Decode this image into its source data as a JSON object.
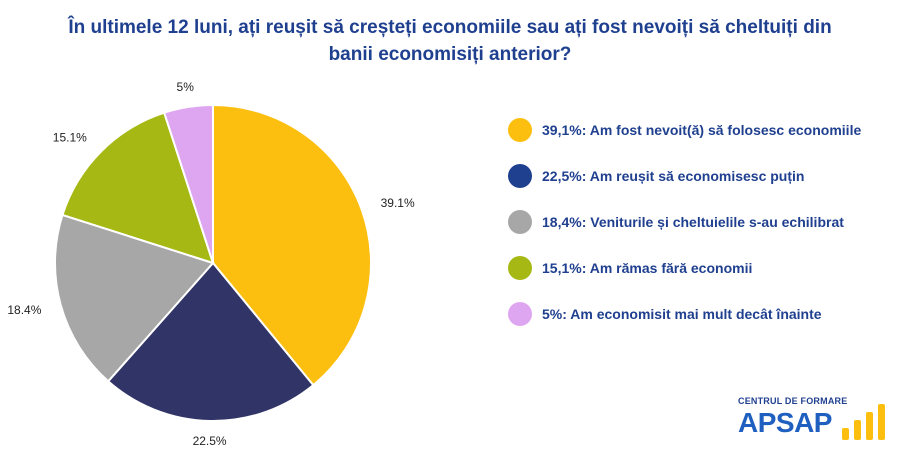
{
  "title": {
    "line1": "În ultimele 12 luni, ați reușit să creșteți economiile sau ați fost nevoiți să cheltuiți din",
    "line2": "banii economisiți anterior?"
  },
  "chart_data": {
    "type": "pie",
    "categories": [
      "Am fost nevoit(ă) să folosesc economiile",
      "Am reușit să economisesc puțin",
      "Veniturile și cheltuielile s-au echilibrat",
      "Am rămas fără economii",
      "Am economisit mai mult decât înainte"
    ],
    "values": [
      39.1,
      22.5,
      18.4,
      15.1,
      5
    ],
    "slice_labels": [
      "39.1%",
      "22.5%",
      "18.4%",
      "15.1%",
      "5%"
    ],
    "colors": [
      "#fdbf0f",
      "#313467",
      "#a7a7a7",
      "#a5b813",
      "#dea5f0"
    ],
    "start_angle": "12 o'clock",
    "direction": "clockwise"
  },
  "legend": {
    "items": [
      {
        "label": "39,1%: Am fost nevoit(ă) să folosesc economiile",
        "color": "#fdbf0f"
      },
      {
        "label": "22,5%: Am reușit să economisesc puțin",
        "color": "#1f3f8f"
      },
      {
        "label": "18,4%: Veniturile și cheltuielile s-au echilibrat",
        "color": "#a7a7a7"
      },
      {
        "label": "15,1%: Am rămas fără economii",
        "color": "#a5b813"
      },
      {
        "label": "5%: Am economisit mai mult decât înainte",
        "color": "#dea5f0"
      }
    ]
  },
  "logo": {
    "top_text": "CENTRUL DE FORMARE",
    "main_text": "APSAP",
    "mark_color": "#fdbf0f"
  }
}
